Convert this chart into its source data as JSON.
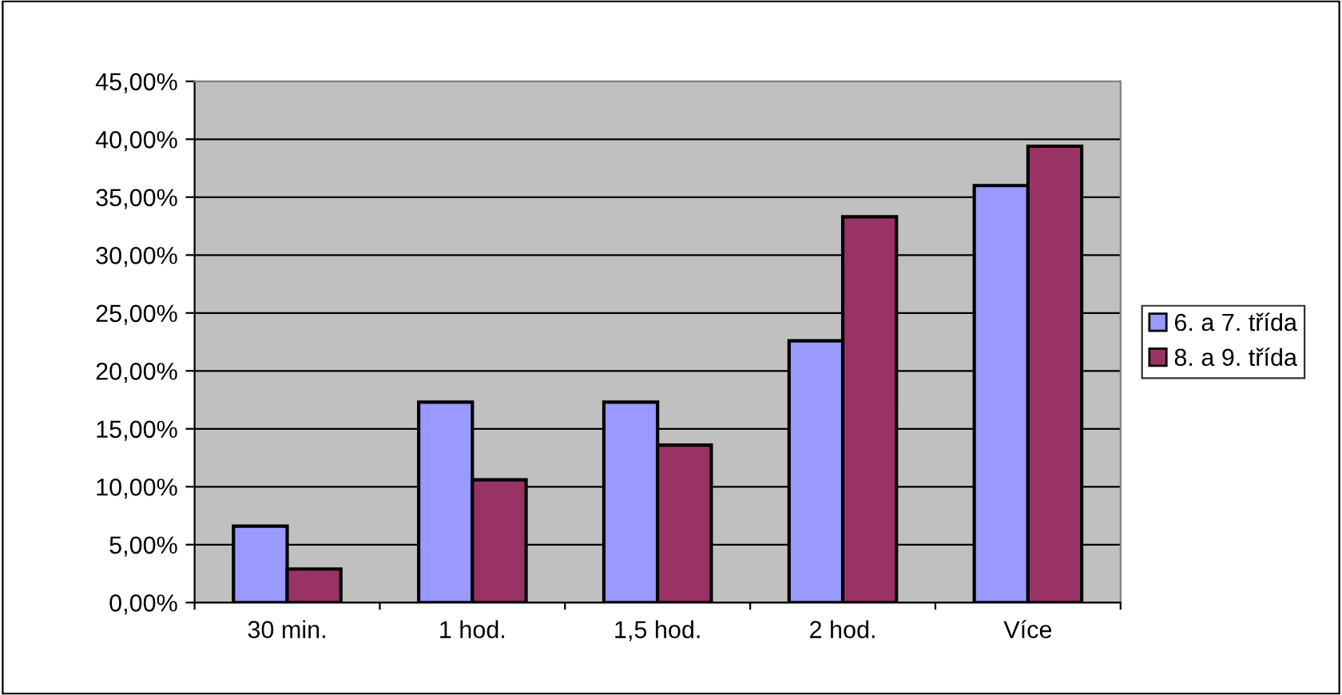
{
  "chart_data": {
    "type": "bar",
    "categories": [
      "30 min.",
      "1 hod.",
      "1,5 hod.",
      "2 hod.",
      "Více"
    ],
    "series": [
      {
        "name": "6. a 7. třída",
        "color": "#9999ff",
        "values": [
          6.6,
          17.3,
          17.3,
          22.6,
          36.0
        ]
      },
      {
        "name": "8. a 9. třída",
        "color": "#993366",
        "values": [
          2.9,
          10.6,
          13.6,
          33.3,
          39.4
        ]
      }
    ],
    "ylim": [
      0,
      45
    ],
    "yticks": [
      {
        "value": 0,
        "label": "0,00%"
      },
      {
        "value": 5,
        "label": "5,00%"
      },
      {
        "value": 10,
        "label": "10,00%"
      },
      {
        "value": 15,
        "label": "15,00%"
      },
      {
        "value": 20,
        "label": "20,00%"
      },
      {
        "value": 25,
        "label": "25,00%"
      },
      {
        "value": 30,
        "label": "30,00%"
      },
      {
        "value": 35,
        "label": "35,00%"
      },
      {
        "value": 40,
        "label": "40,00%"
      },
      {
        "value": 45,
        "label": "45,00%"
      }
    ],
    "grid": "y",
    "legend": "right"
  }
}
